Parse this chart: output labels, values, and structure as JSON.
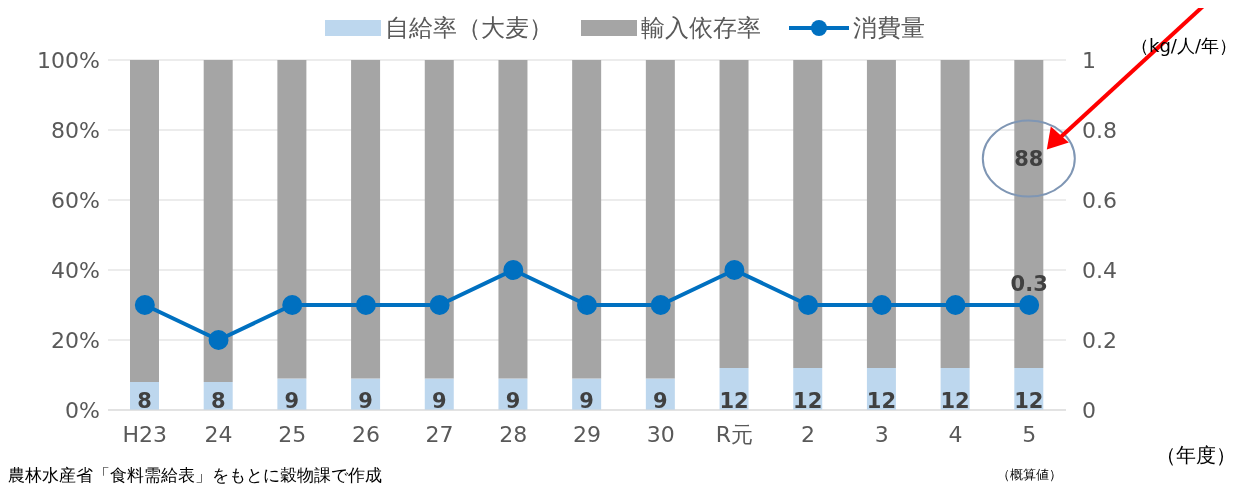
{
  "chart_data": {
    "type": "bar",
    "stacked": true,
    "categories": [
      "H23",
      "24",
      "25",
      "26",
      "27",
      "28",
      "29",
      "30",
      "R元",
      "2",
      "3",
      "4",
      "5"
    ],
    "series": [
      {
        "name": "自給率（大麦）",
        "color": "#bdd7ee",
        "values": [
          8,
          8,
          9,
          9,
          9,
          9,
          9,
          9,
          12,
          12,
          12,
          12,
          12
        ],
        "data_labels": true
      },
      {
        "name": "輸入依存率",
        "color": "#a5a5a5",
        "values": [
          92,
          92,
          91,
          91,
          91,
          91,
          91,
          91,
          88,
          88,
          88,
          88,
          88
        ],
        "value_labels": [
          null,
          null,
          null,
          null,
          null,
          null,
          null,
          null,
          null,
          null,
          null,
          null,
          "88"
        ]
      },
      {
        "name": "消費量",
        "type": "line",
        "axis": "y2",
        "color": "#0070c0",
        "marker": "circle",
        "values": [
          0.3,
          0.2,
          0.3,
          0.3,
          0.3,
          0.4,
          0.3,
          0.3,
          0.4,
          0.3,
          0.3,
          0.3,
          0.3
        ],
        "value_labels": [
          null,
          null,
          null,
          null,
          null,
          null,
          null,
          null,
          null,
          null,
          null,
          null,
          "0.3"
        ]
      }
    ],
    "ylim": [
      0,
      100
    ],
    "yticks": [
      {
        "value": 0,
        "label": "0%"
      },
      {
        "value": 20,
        "label": "20%"
      },
      {
        "value": 40,
        "label": "40%"
      },
      {
        "value": 60,
        "label": "60%"
      },
      {
        "value": 80,
        "label": "80%"
      },
      {
        "value": 100,
        "label": "100%"
      }
    ],
    "y2lim": [
      0,
      1
    ],
    "y2ticks": [
      0,
      0.2,
      0.4,
      0.6,
      0.8,
      1
    ],
    "y2label": "（kg/人/年）",
    "annotations": [
      "（年度）",
      "（概算値）",
      "農林水産省「食料需給表」をもとに穀物課で作成"
    ],
    "grid": "y",
    "legend": "top"
  }
}
